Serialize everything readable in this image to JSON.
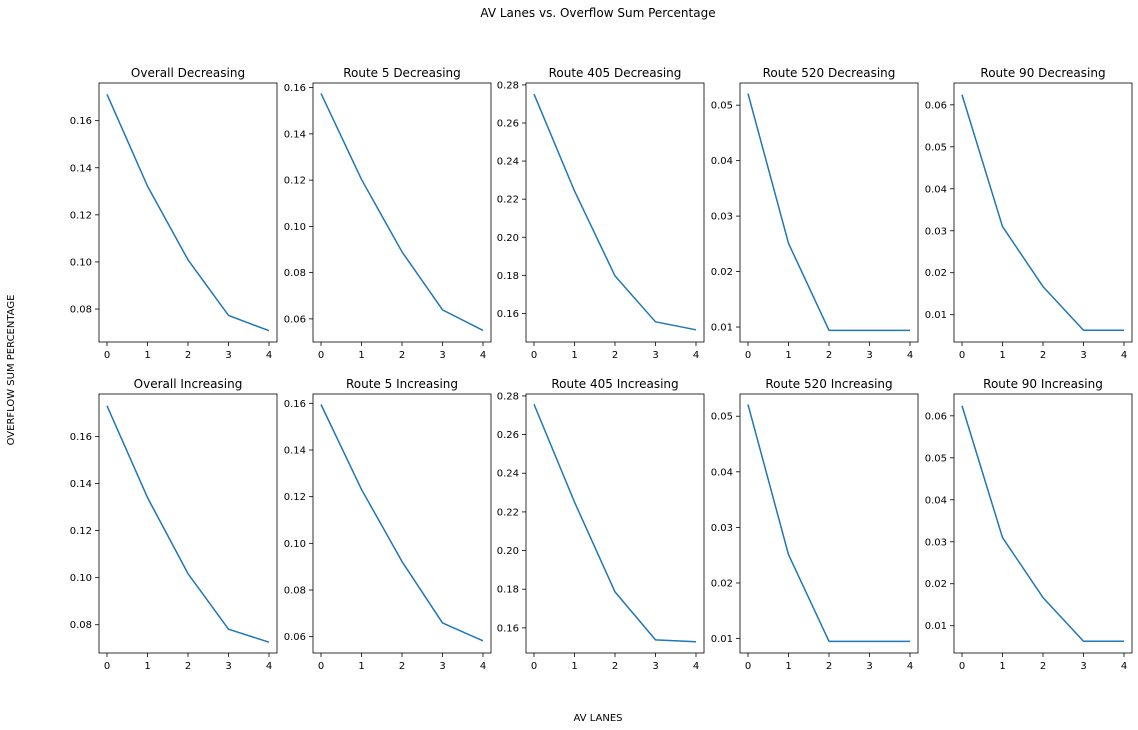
{
  "figure": {
    "title": "AV Lanes vs. Overflow Sum Percentage",
    "xlabel": "AV LANES",
    "ylabel": "OVERFLOW SUM PERCENTAGE",
    "line_color": "#1f77b4"
  },
  "chart_data": [
    {
      "type": "line",
      "title": "Overall Decreasing",
      "x": [
        0,
        1,
        2,
        3,
        4
      ],
      "y": [
        0.1712,
        0.1322,
        0.1009,
        0.0773,
        0.0708
      ],
      "xticks": [
        "0",
        "1",
        "2",
        "3",
        "4"
      ],
      "yticks": [
        0.08,
        0.1,
        0.12,
        0.14,
        0.16
      ],
      "ylim": [
        0.066,
        0.176
      ],
      "ytick_format": 2
    },
    {
      "type": "line",
      "title": "Route 5 Decreasing",
      "x": [
        0,
        1,
        2,
        3,
        4
      ],
      "y": [
        0.1575,
        0.1203,
        0.089,
        0.0639,
        0.055
      ],
      "xticks": [
        "0",
        "1",
        "2",
        "3",
        "4"
      ],
      "yticks": [
        0.06,
        0.08,
        0.1,
        0.12,
        0.14,
        0.16
      ],
      "ylim": [
        0.05,
        0.162
      ],
      "ytick_format": 2
    },
    {
      "type": "line",
      "title": "Route 405 Decreasing",
      "x": [
        0,
        1,
        2,
        3,
        4
      ],
      "y": [
        0.2752,
        0.2243,
        0.1797,
        0.1556,
        0.1514
      ],
      "xticks": [
        "0",
        "1",
        "2",
        "3",
        "4"
      ],
      "yticks": [
        0.16,
        0.18,
        0.2,
        0.22,
        0.24,
        0.26,
        0.28
      ],
      "ylim": [
        0.145,
        0.281
      ],
      "ytick_format": 2
    },
    {
      "type": "line",
      "title": "Route 520 Decreasing",
      "x": [
        0,
        1,
        2,
        3,
        4
      ],
      "y": [
        0.0521,
        0.0251,
        0.0094,
        0.0094,
        0.0094
      ],
      "xticks": [
        "0",
        "1",
        "2",
        "3",
        "4"
      ],
      "yticks": [
        0.01,
        0.02,
        0.03,
        0.04,
        0.05
      ],
      "ylim": [
        0.0073,
        0.054
      ],
      "ytick_format": 2
    },
    {
      "type": "line",
      "title": "Route 90 Decreasing",
      "x": [
        0,
        1,
        2,
        3,
        4
      ],
      "y": [
        0.0624,
        0.031,
        0.0167,
        0.0063,
        0.0063
      ],
      "xticks": [
        "0",
        "1",
        "2",
        "3",
        "4"
      ],
      "yticks": [
        0.01,
        0.02,
        0.03,
        0.04,
        0.05,
        0.06
      ],
      "ylim": [
        0.0035,
        0.0652
      ],
      "ytick_format": 2
    },
    {
      "type": "line",
      "title": "Overall Increasing",
      "x": [
        0,
        1,
        2,
        3,
        4
      ],
      "y": [
        0.173,
        0.134,
        0.1017,
        0.0781,
        0.0726
      ],
      "xticks": [
        "0",
        "1",
        "2",
        "3",
        "4"
      ],
      "yticks": [
        0.08,
        0.1,
        0.12,
        0.14,
        0.16
      ],
      "ylim": [
        0.068,
        0.178
      ],
      "ytick_format": 2
    },
    {
      "type": "line",
      "title": "Route 5 Increasing",
      "x": [
        0,
        1,
        2,
        3,
        4
      ],
      "y": [
        0.1595,
        0.1231,
        0.0922,
        0.0659,
        0.0582
      ],
      "xticks": [
        "0",
        "1",
        "2",
        "3",
        "4"
      ],
      "yticks": [
        0.06,
        0.08,
        0.1,
        0.12,
        0.14,
        0.16
      ],
      "ylim": [
        0.053,
        0.164
      ],
      "ytick_format": 2
    },
    {
      "type": "line",
      "title": "Route 405 Increasing",
      "x": [
        0,
        1,
        2,
        3,
        4
      ],
      "y": [
        0.2757,
        0.2251,
        0.1786,
        0.1538,
        0.1528
      ],
      "xticks": [
        "0",
        "1",
        "2",
        "3",
        "4"
      ],
      "yticks": [
        0.16,
        0.18,
        0.2,
        0.22,
        0.24,
        0.26,
        0.28
      ],
      "ylim": [
        0.147,
        0.281
      ],
      "ytick_format": 2
    },
    {
      "type": "line",
      "title": "Route 520 Increasing",
      "x": [
        0,
        1,
        2,
        3,
        4
      ],
      "y": [
        0.0521,
        0.0251,
        0.0095,
        0.0095,
        0.0095
      ],
      "xticks": [
        "0",
        "1",
        "2",
        "3",
        "4"
      ],
      "yticks": [
        0.01,
        0.02,
        0.03,
        0.04,
        0.05
      ],
      "ylim": [
        0.0074,
        0.054
      ],
      "ytick_format": 2
    },
    {
      "type": "line",
      "title": "Route 90 Increasing",
      "x": [
        0,
        1,
        2,
        3,
        4
      ],
      "y": [
        0.0624,
        0.031,
        0.0167,
        0.0063,
        0.0063
      ],
      "xticks": [
        "0",
        "1",
        "2",
        "3",
        "4"
      ],
      "yticks": [
        0.01,
        0.02,
        0.03,
        0.04,
        0.05,
        0.06
      ],
      "ylim": [
        0.0035,
        0.0652
      ],
      "ytick_format": 2
    }
  ]
}
